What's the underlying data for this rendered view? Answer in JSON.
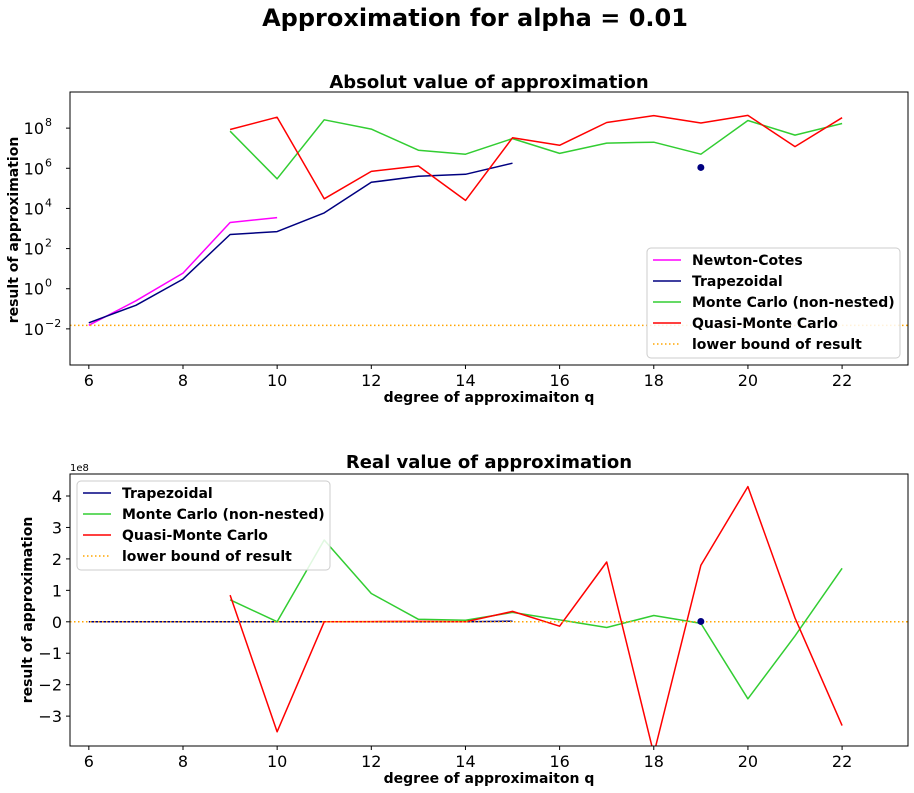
{
  "suptitle": "Approximation for alpha = 0.01",
  "colors": {
    "newton": "#ff00ff",
    "trap": "#000080",
    "mc": "#32cd32",
    "qmc": "#ff0000",
    "bound": "#ffa500",
    "dot": "#000080"
  },
  "chart_data": [
    {
      "type": "line",
      "title": "Absolut value of approximation",
      "xlabel": "degree of approximaiton q",
      "ylabel": "result of approximation",
      "yscale": "log",
      "xlim": [
        5.6,
        23.4
      ],
      "ylim_log10": [
        -3.8,
        9.8
      ],
      "xticks": [
        6,
        8,
        10,
        12,
        14,
        16,
        18,
        20,
        22
      ],
      "yticks_exp": [
        -2,
        0,
        2,
        4,
        6,
        8
      ],
      "legend_position": "lower right",
      "grid": false,
      "series": [
        {
          "name": "Newton-Cotes",
          "color_key": "newton",
          "x": [
            6,
            7,
            8,
            9,
            10
          ],
          "y": [
            0.015,
            0.25,
            6,
            2000,
            3500
          ]
        },
        {
          "name": "Trapezoidal",
          "color_key": "trap",
          "x": [
            6,
            7,
            8,
            9,
            10,
            11,
            12,
            13,
            14,
            15
          ],
          "y": [
            0.02,
            0.15,
            3,
            500,
            700,
            6000,
            200000,
            400000,
            500000,
            1800000
          ]
        },
        {
          "name": "Monte Carlo (non-nested)",
          "color_key": "mc",
          "x": [
            9,
            10,
            11,
            12,
            13,
            14,
            15,
            16,
            17,
            18,
            19,
            20,
            21,
            22
          ],
          "y": [
            70000000,
            300000,
            260000000,
            90000000,
            8000000,
            5000000,
            30000000,
            5500000,
            18000000,
            20000000,
            5000000,
            240000000,
            45000000,
            170000000
          ]
        },
        {
          "name": "Quasi-Monte Carlo",
          "color_key": "qmc",
          "x": [
            9,
            10,
            11,
            12,
            13,
            14,
            15,
            16,
            17,
            18,
            19,
            20,
            21,
            22
          ],
          "y": [
            85000000,
            350000000,
            30000,
            700000,
            1300000,
            25000,
            33000000,
            14000000,
            190000000,
            420000000,
            180000000,
            430000000,
            12000000,
            330000000
          ]
        },
        {
          "name": "lower bound of result",
          "color_key": "bound",
          "style": "dotted",
          "y_const": 0.015
        }
      ],
      "points": [
        {
          "x": 19,
          "y": 1100000,
          "color_key": "dot"
        }
      ]
    },
    {
      "type": "line",
      "title": "Real value of approximation",
      "xlabel": "degree of approximaiton q",
      "ylabel": "result of approximation",
      "offset_text": "1e8",
      "xlim": [
        5.6,
        23.4
      ],
      "ylim": [
        -3.95,
        4.7
      ],
      "xticks": [
        6,
        8,
        10,
        12,
        14,
        16,
        18,
        20,
        22
      ],
      "yticks": [
        -3,
        -2,
        -1,
        0,
        1,
        2,
        3,
        4
      ],
      "legend_position": "upper left",
      "grid": false,
      "series": [
        {
          "name": "Trapezoidal",
          "color_key": "trap",
          "x": [
            6,
            7,
            8,
            9,
            10,
            11,
            12,
            13,
            14,
            15
          ],
          "y": [
            0,
            0,
            0,
            0,
            0,
            0,
            0,
            0.002,
            0.003,
            0.018
          ]
        },
        {
          "name": "Monte Carlo (non-nested)",
          "color_key": "mc",
          "x": [
            9,
            10,
            11,
            12,
            13,
            14,
            15,
            16,
            17,
            18,
            19,
            20,
            21,
            22
          ],
          "y": [
            0.7,
            0.003,
            2.6,
            0.9,
            0.08,
            0.05,
            0.3,
            0.06,
            -0.18,
            0.2,
            -0.05,
            -2.45,
            -0.45,
            1.7
          ]
        },
        {
          "name": "Quasi-Monte Carlo",
          "color_key": "qmc",
          "x": [
            9,
            10,
            11,
            12,
            13,
            14,
            15,
            16,
            17,
            18,
            19,
            20,
            21,
            22
          ],
          "y": [
            0.85,
            -3.5,
            0.0003,
            0.007,
            0.013,
            0.0002,
            0.33,
            -0.14,
            1.9,
            -4.2,
            1.8,
            4.3,
            0.12,
            -3.3
          ]
        },
        {
          "name": "lower bound of result",
          "color_key": "bound",
          "style": "dotted",
          "y_const": 0
        }
      ],
      "points": [
        {
          "x": 19,
          "y": 0.011,
          "color_key": "dot"
        }
      ]
    }
  ]
}
